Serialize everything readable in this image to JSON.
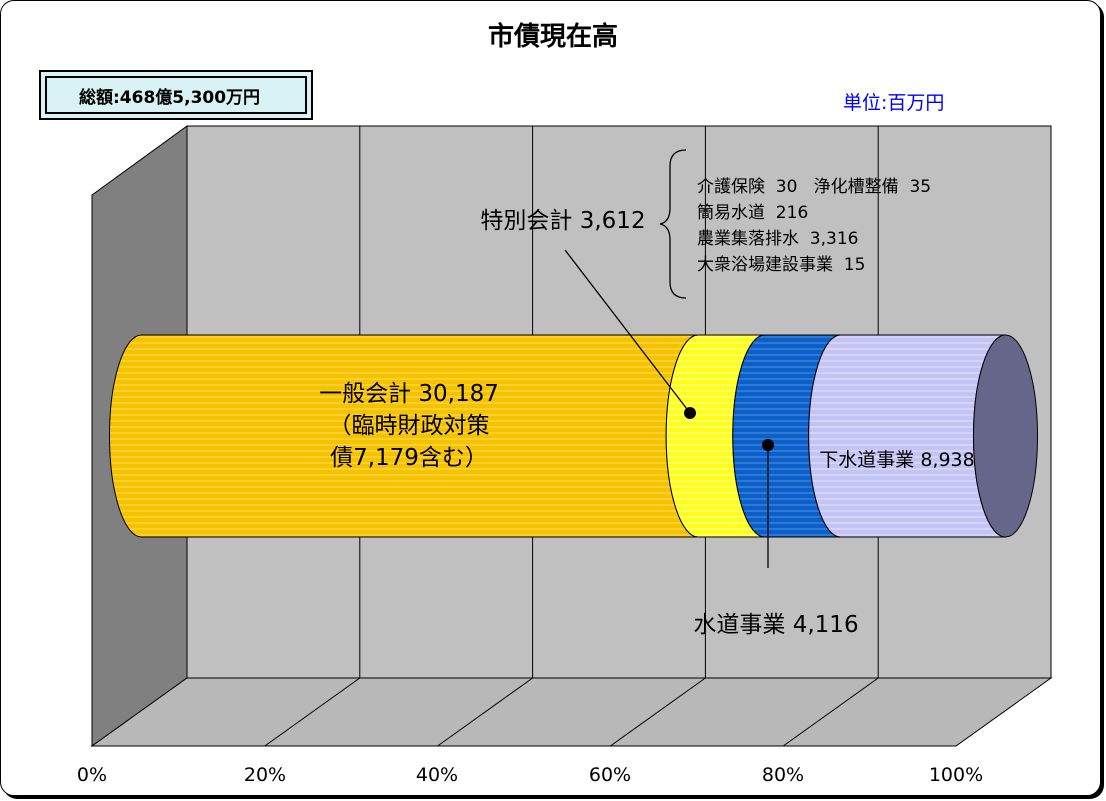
{
  "title": "市債現在高",
  "total_label": "総額:468億5,300万円",
  "unit_label": "単位:百万円",
  "colors": {
    "general": "#f5c200",
    "special": "#ffff1a",
    "water": "#0a5fc8",
    "sewer": "#c4c4f4",
    "wall_back": "#c0c0c0",
    "wall_left": "#808080",
    "floor": "#b0b0b0"
  },
  "chart_data": {
    "type": "bar",
    "orientation": "horizontal-stacked-100pct-cylinder",
    "title": "市債現在高",
    "xlim": [
      0,
      100
    ],
    "x_tick_labels": [
      "0%",
      "20%",
      "40%",
      "60%",
      "80%",
      "100%"
    ],
    "grid": true,
    "series": [
      {
        "name": "一般会計",
        "value": 30187,
        "label_lines": [
          "一般会計 30,187",
          "（臨時財政対策",
          "債7,179含む）"
        ],
        "color": "#f5c200"
      },
      {
        "name": "特別会計",
        "value": 3612,
        "label_lines": [
          "特別会計 3,612"
        ],
        "color": "#ffff1a"
      },
      {
        "name": "水道事業",
        "value": 4116,
        "label_lines": [
          "水道事業 4,116"
        ],
        "color": "#0a5fc8"
      },
      {
        "name": "下水道事業",
        "value": 8938,
        "label_lines": [
          "下水道事業 8,938"
        ],
        "color": "#c4c4f4"
      }
    ],
    "special_breakdown": [
      "介護保険  30   浄化槽整備  35",
      "簡易水道  216",
      "農業集落排水  3,316",
      "大衆浴場建設事業  15"
    ]
  }
}
